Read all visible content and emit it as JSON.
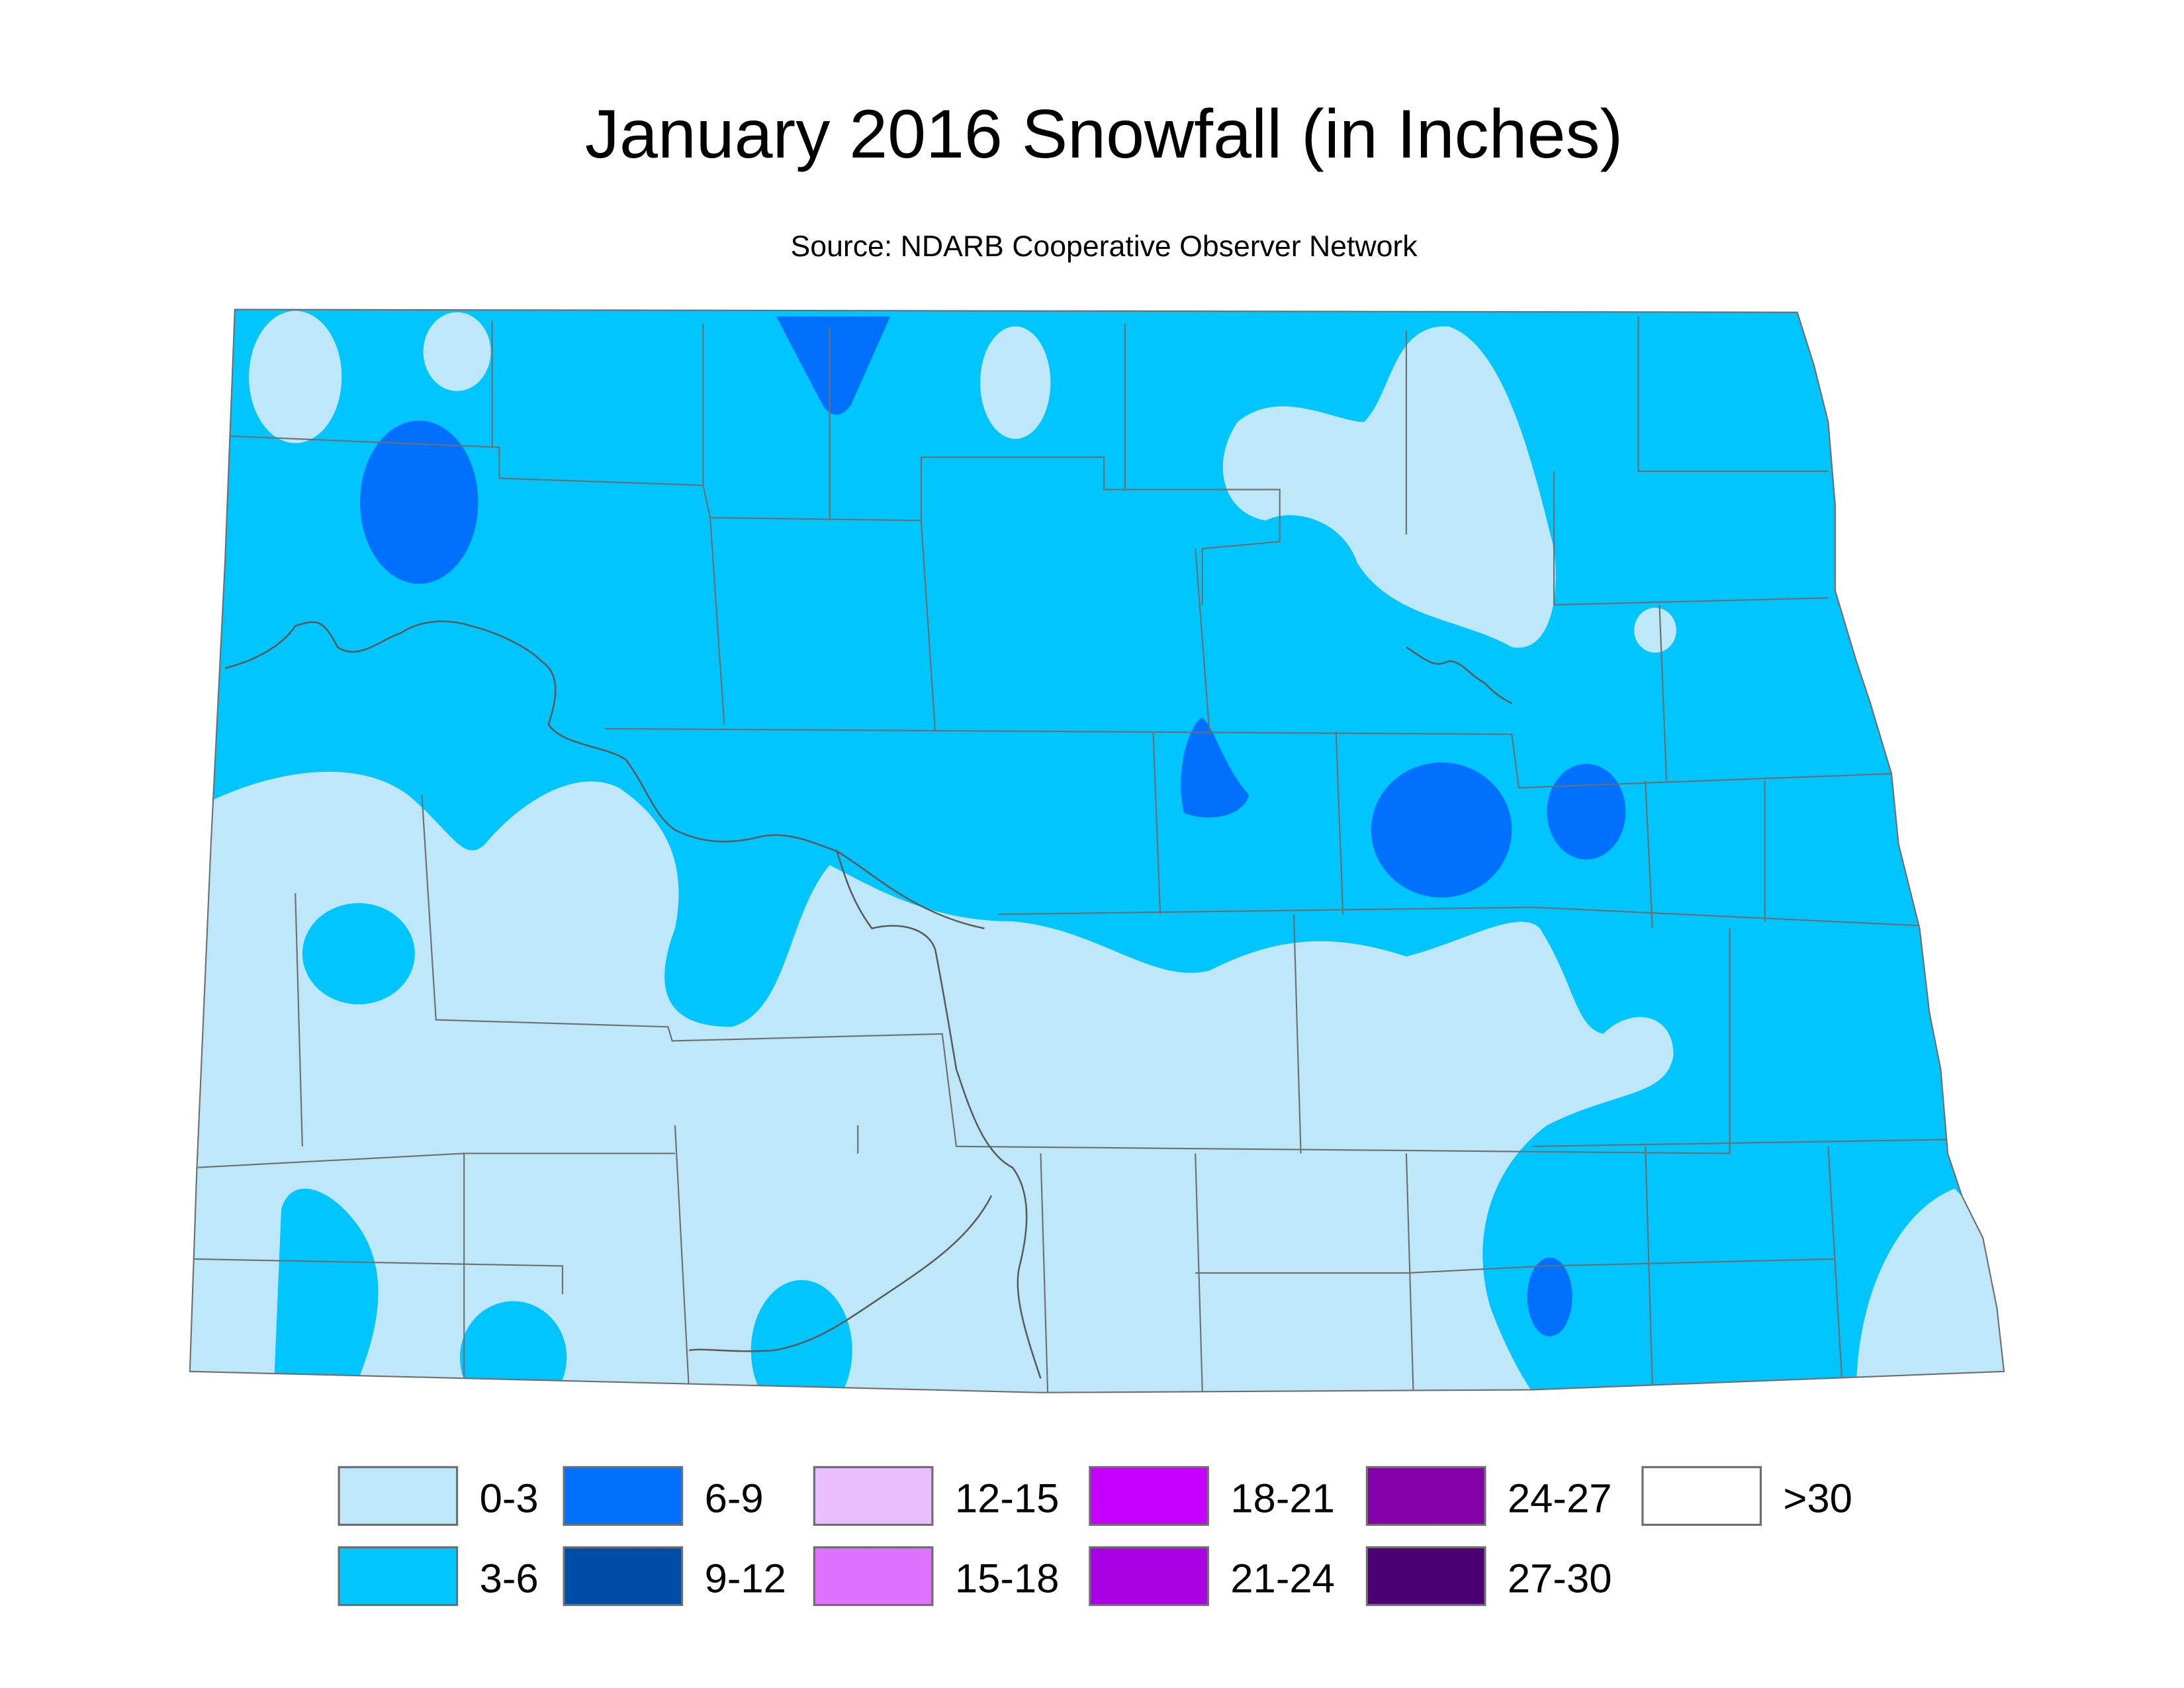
{
  "header": {
    "title": "January 2016 Snowfall (in Inches)",
    "subtitle": "Source: NDARB Cooperative Observer Network"
  },
  "legend": {
    "items": [
      {
        "label": "0-3",
        "color": "#bee8fa"
      },
      {
        "label": "3-6",
        "color": "#00c5ff"
      },
      {
        "label": "6-9",
        "color": "#0070ff"
      },
      {
        "label": "9-12",
        "color": "#004da8"
      },
      {
        "label": "12-15",
        "color": "#e8beff"
      },
      {
        "label": "15-18",
        "color": "#df73ff"
      },
      {
        "label": "18-21",
        "color": "#c500ff"
      },
      {
        "label": "21-24",
        "color": "#a900e6"
      },
      {
        "label": "24-27",
        "color": "#8400a8"
      },
      {
        "label": "27-30",
        "color": "#4c0073"
      },
      {
        "label": ">30",
        "color": "#ffffff"
      }
    ]
  }
}
